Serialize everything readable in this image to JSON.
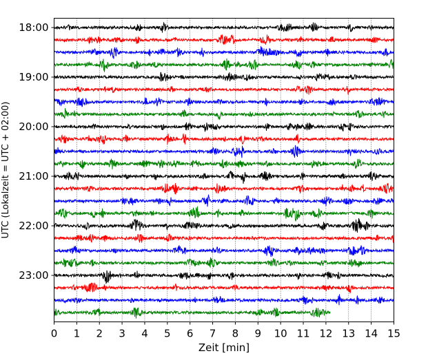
{
  "chart_data": {
    "type": "line",
    "xlabel": "Zeit  [min]",
    "ylabel": "UTC (Lokalzeit = UTC + 02:00)",
    "x_ticks": [
      "0",
      "1",
      "2",
      "3",
      "4",
      "5",
      "6",
      "7",
      "8",
      "9",
      "10",
      "11",
      "12",
      "13",
      "14",
      "15"
    ],
    "xlim": [
      0,
      15
    ],
    "y_ticks": [
      "18:00",
      "19:00",
      "20:00",
      "21:00",
      "22:00",
      "23:00"
    ],
    "grid_vertical": true,
    "grid_style": "dotted",
    "trace_interval_minutes": 15,
    "colors": [
      "#000000",
      "#ff0000",
      "#0000ff",
      "#008000"
    ],
    "traces": [
      {
        "start": "18:00",
        "end_min": 15
      },
      {
        "start": "18:15",
        "end_min": 15
      },
      {
        "start": "18:30",
        "end_min": 15
      },
      {
        "start": "18:45",
        "end_min": 15
      },
      {
        "start": "19:00",
        "end_min": 15
      },
      {
        "start": "19:15",
        "end_min": 15
      },
      {
        "start": "19:30",
        "end_min": 15
      },
      {
        "start": "19:45",
        "end_min": 15
      },
      {
        "start": "20:00",
        "end_min": 15
      },
      {
        "start": "20:15",
        "end_min": 15
      },
      {
        "start": "20:30",
        "end_min": 15
      },
      {
        "start": "20:45",
        "end_min": 15
      },
      {
        "start": "21:00",
        "end_min": 15
      },
      {
        "start": "21:15",
        "end_min": 15
      },
      {
        "start": "21:30",
        "end_min": 15
      },
      {
        "start": "21:45",
        "end_min": 15
      },
      {
        "start": "22:00",
        "end_min": 15
      },
      {
        "start": "22:15",
        "end_min": 15
      },
      {
        "start": "22:30",
        "end_min": 15
      },
      {
        "start": "22:45",
        "end_min": 15
      },
      {
        "start": "23:00",
        "end_min": 15
      },
      {
        "start": "23:15",
        "end_min": 15
      },
      {
        "start": "23:30",
        "end_min": 15
      },
      {
        "start": "23:45",
        "end_min": 12.2
      }
    ]
  }
}
